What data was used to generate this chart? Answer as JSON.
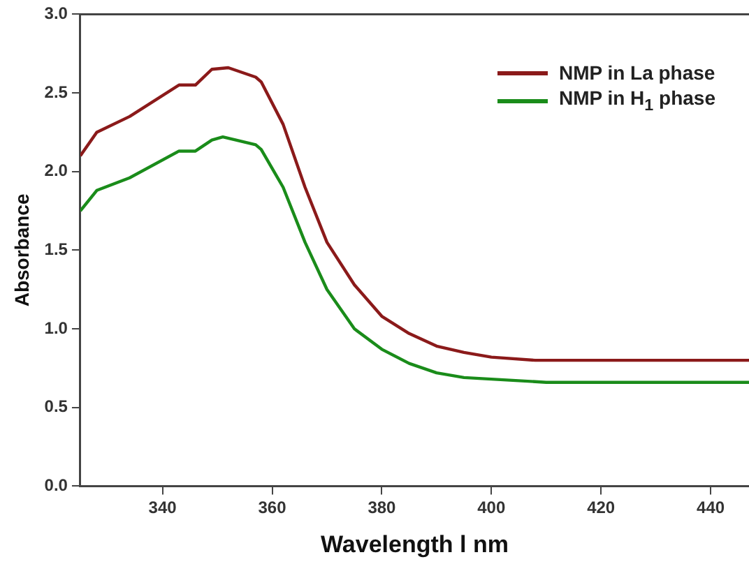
{
  "chart_data": {
    "type": "line",
    "xlabel": "Wavelength l nm",
    "ylabel": "Absorbance",
    "xlim": [
      325,
      447
    ],
    "ylim": [
      0,
      3
    ],
    "xticks": [
      340,
      360,
      380,
      400,
      420,
      440
    ],
    "yticks": [
      {
        "value": 0,
        "label": "0.0"
      },
      0.5,
      {
        "value": 1,
        "label": "1.0"
      },
      1.5,
      {
        "value": 2,
        "label": "2.0"
      },
      2.5,
      {
        "value": 3,
        "label": "3.0"
      }
    ],
    "grid": false,
    "legend": "top right",
    "marker": "none",
    "line_style": "solid",
    "series": [
      {
        "name": "NMP in La phase",
        "color": "#8b1a1a",
        "x": [
          325,
          328,
          334,
          343,
          346,
          349,
          352,
          357,
          358,
          362,
          366,
          370,
          375,
          380,
          385,
          390,
          395,
          400,
          408,
          447
        ],
        "values": [
          2.1,
          2.25,
          2.35,
          2.55,
          2.55,
          2.65,
          2.66,
          2.6,
          2.57,
          2.3,
          1.9,
          1.55,
          1.28,
          1.08,
          0.97,
          0.89,
          0.85,
          0.82,
          0.8,
          0.8
        ]
      },
      {
        "name": "NMP in H$_{1}$ phase",
        "color": "#1a8c1a",
        "x": [
          325,
          328,
          334,
          343,
          346,
          349,
          351,
          357,
          358,
          362,
          366,
          370,
          375,
          380,
          385,
          390,
          395,
          400,
          410,
          447
        ],
        "values": [
          1.75,
          1.88,
          1.96,
          2.13,
          2.13,
          2.2,
          2.22,
          2.17,
          2.14,
          1.9,
          1.55,
          1.25,
          1,
          0.87,
          0.78,
          0.72,
          0.69,
          0.68,
          0.66,
          0.66
        ]
      }
    ]
  }
}
